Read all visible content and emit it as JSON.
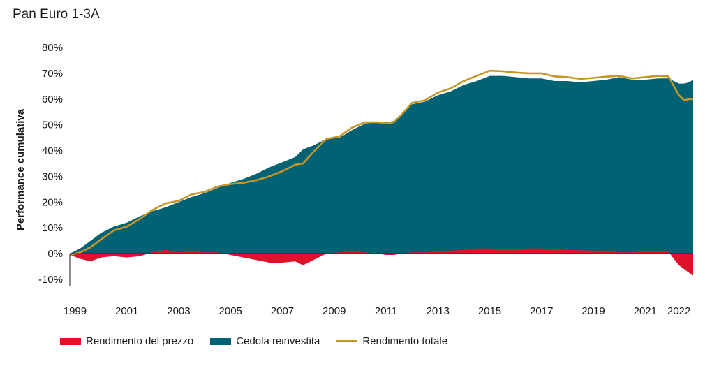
{
  "title": "Pan Euro 1-3A",
  "colors": {
    "price": "#e0112b",
    "coupon": "#006272",
    "total": "#c7962a",
    "negative_tick": "#e0112b"
  },
  "chart_data": {
    "type": "area",
    "title": "Pan Euro 1-3A",
    "ylabel": "Performance cumulativa",
    "xlabel": "",
    "ylim": [
      -10,
      80
    ],
    "xlim": [
      1998.8,
      2022.85
    ],
    "yticks": [
      {
        "value": 80,
        "label": "80%"
      },
      {
        "value": 70,
        "label": "70%"
      },
      {
        "value": 60,
        "label": "60%"
      },
      {
        "value": 50,
        "label": "50%"
      },
      {
        "value": 40,
        "label": "40%"
      },
      {
        "value": 30,
        "label": "30%"
      },
      {
        "value": 20,
        "label": "20%"
      },
      {
        "value": 10,
        "label": "10%"
      },
      {
        "value": 0,
        "label": "0%"
      },
      {
        "value": -10,
        "label": "-10%"
      }
    ],
    "xticks": [
      {
        "value": 1999,
        "label": "1999"
      },
      {
        "value": 2001,
        "label": "2001"
      },
      {
        "value": 2003,
        "label": "2003"
      },
      {
        "value": 2005,
        "label": "2005"
      },
      {
        "value": 2007,
        "label": "2007"
      },
      {
        "value": 2009,
        "label": "2009"
      },
      {
        "value": 2011,
        "label": "2011"
      },
      {
        "value": 2013,
        "label": "2013"
      },
      {
        "value": 2015,
        "label": "2015"
      },
      {
        "value": 2017,
        "label": "2017"
      },
      {
        "value": 2019,
        "label": "2019"
      },
      {
        "value": 2021,
        "label": "2021"
      },
      {
        "value": 2022.3,
        "label": "2022"
      }
    ],
    "legend": [
      {
        "name": "Rendimento del prezzo",
        "kind": "box",
        "color": "#e0112b"
      },
      {
        "name": "Cedola reinvestita",
        "kind": "box",
        "color": "#006272"
      },
      {
        "name": "Rendimento totale",
        "kind": "line",
        "color": "#c7962a"
      }
    ],
    "series": [
      {
        "name": "Rendimento del prezzo",
        "x": [
          1998.8,
          1999.2,
          1999.6,
          2000.0,
          2000.5,
          2001.0,
          2001.5,
          2002.0,
          2002.5,
          2003.0,
          2003.5,
          2004.0,
          2004.5,
          2005.0,
          2005.5,
          2006.0,
          2006.5,
          2007.0,
          2007.5,
          2007.8,
          2008.2,
          2008.7,
          2009.2,
          2009.7,
          2010.2,
          2010.7,
          2011.0,
          2011.3,
          2011.6,
          2012.0,
          2012.5,
          2013.0,
          2013.5,
          2014.0,
          2014.5,
          2015.0,
          2015.5,
          2016.0,
          2016.5,
          2017.0,
          2017.5,
          2018.0,
          2018.5,
          2019.0,
          2019.5,
          2020.0,
          2020.5,
          2021.0,
          2021.5,
          2021.9,
          2022.1,
          2022.3,
          2022.5,
          2022.7,
          2022.85
        ],
        "values": [
          -0.5,
          -2,
          -3,
          -1.5,
          -1,
          -1.5,
          -1,
          0.5,
          1.5,
          0.5,
          1,
          0.5,
          0.5,
          -0.5,
          -1.5,
          -2.5,
          -3.5,
          -3.5,
          -3,
          -4.5,
          -2.5,
          0,
          0.5,
          1,
          0.5,
          0,
          -0.5,
          -0.5,
          0,
          0.5,
          0.5,
          1,
          1.2,
          1.5,
          2,
          2,
          1.8,
          1.8,
          2,
          2,
          1.8,
          1.5,
          1.3,
          1.2,
          1.2,
          0.5,
          0.5,
          1,
          1,
          0.8,
          -2,
          -4.5,
          -6,
          -7.5,
          -8.5
        ]
      },
      {
        "name": "Cedola reinvestita",
        "x": [
          1998.8,
          1999.2,
          1999.6,
          2000.0,
          2000.5,
          2001.0,
          2001.5,
          2002.0,
          2002.5,
          2003.0,
          2003.5,
          2004.0,
          2004.5,
          2005.0,
          2005.5,
          2006.0,
          2006.5,
          2007.0,
          2007.5,
          2007.8,
          2008.2,
          2008.7,
          2009.2,
          2009.7,
          2010.2,
          2010.7,
          2011.0,
          2011.3,
          2011.6,
          2012.0,
          2012.5,
          2013.0,
          2013.5,
          2014.0,
          2014.5,
          2015.0,
          2015.5,
          2016.0,
          2016.5,
          2017.0,
          2017.5,
          2018.0,
          2018.5,
          2019.0,
          2019.5,
          2020.0,
          2020.5,
          2021.0,
          2021.5,
          2021.9,
          2022.1,
          2022.3,
          2022.5,
          2022.7,
          2022.85
        ],
        "values": [
          0,
          2,
          5,
          8,
          10.5,
          12,
          14.5,
          16.5,
          18,
          20,
          22,
          23.5,
          25.5,
          27.5,
          29,
          31,
          33.5,
          35.5,
          37.5,
          40.5,
          42,
          44.5,
          45,
          48,
          50.5,
          51,
          51,
          51.5,
          54,
          58,
          59,
          61.5,
          63,
          65.5,
          67,
          69,
          69,
          68.5,
          68,
          68,
          67,
          67,
          66.5,
          67,
          67.5,
          68.5,
          67.5,
          67.5,
          68,
          68,
          67,
          66,
          66,
          66.5,
          67.5
        ]
      },
      {
        "name": "Rendimento totale",
        "x": [
          1998.8,
          1999.2,
          1999.6,
          2000.0,
          2000.5,
          2001.0,
          2001.5,
          2002.0,
          2002.5,
          2003.0,
          2003.5,
          2004.0,
          2004.5,
          2005.0,
          2005.5,
          2006.0,
          2006.5,
          2007.0,
          2007.5,
          2007.8,
          2008.2,
          2008.7,
          2009.2,
          2009.7,
          2010.2,
          2010.7,
          2011.0,
          2011.3,
          2011.6,
          2012.0,
          2012.5,
          2013.0,
          2013.5,
          2014.0,
          2014.5,
          2015.0,
          2015.5,
          2016.0,
          2016.5,
          2017.0,
          2017.5,
          2018.0,
          2018.5,
          2019.0,
          2019.5,
          2020.0,
          2020.5,
          2021.0,
          2021.5,
          2021.9,
          2022.1,
          2022.3,
          2022.5,
          2022.7,
          2022.85
        ],
        "values": [
          -0.5,
          0.5,
          2.5,
          5.5,
          9,
          10.5,
          13.5,
          17,
          19.5,
          20.5,
          23,
          24,
          26,
          27,
          27.5,
          28.5,
          30,
          32,
          34.5,
          35,
          39.5,
          44.5,
          45.5,
          49,
          51,
          51,
          50.5,
          51,
          54,
          58.5,
          59.5,
          62.5,
          64.2,
          67,
          69,
          71,
          70.8,
          70.3,
          70,
          70,
          68.8,
          68.5,
          67.8,
          68.2,
          68.7,
          69,
          68,
          68.5,
          69,
          68.8,
          65,
          61.5,
          59.5,
          60,
          60
        ]
      }
    ],
    "grid": false
  }
}
